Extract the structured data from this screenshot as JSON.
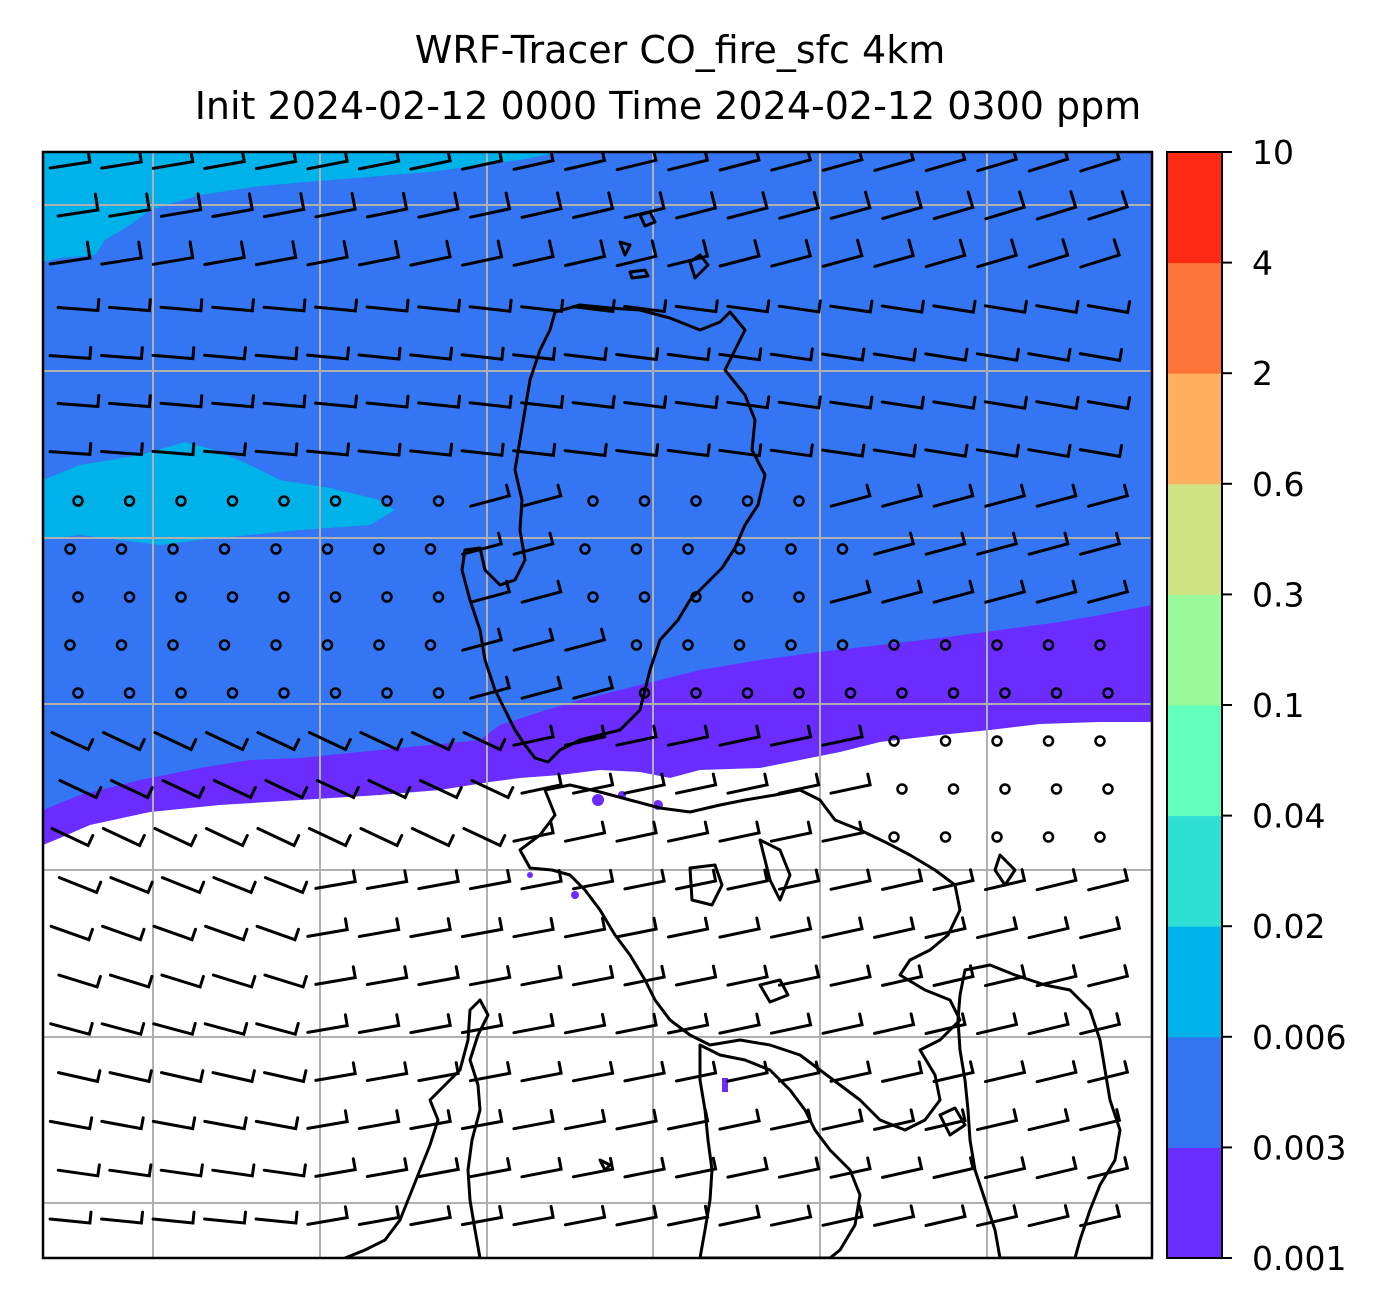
{
  "figure": {
    "title_line1": "WRF-Tracer CO_fire_sfc 4km",
    "title_line2": "Init 2024-02-12 0000 Time 2024-02-12 0300 ppm"
  },
  "colorbar": {
    "levels": [
      "0.001",
      "0.003",
      "0.006",
      "0.02",
      "0.04",
      "0.1",
      "0.3",
      "0.6",
      "2",
      "4",
      "10"
    ],
    "tick_labels": [
      "0.001",
      "0.003",
      "0.006",
      "0.02",
      "0.04",
      "0.1",
      "0.3",
      "0.6",
      "2",
      "4",
      "10"
    ],
    "colors": [
      "#6a2cff",
      "#3375f2",
      "#00b2ea",
      "#2ee0d3",
      "#63ffbd",
      "#98fa98",
      "#d1e382",
      "#ffb160",
      "#ff7539",
      "#ff2a14"
    ]
  },
  "map": {
    "field_colors": {
      "band_0006_002": "#00b2ea",
      "band_0003_0006": "#3375f2",
      "band_0001_0003": "#6a2cff",
      "below_0001": "#ffffff"
    },
    "gridline_color": "#b0b0b0",
    "coastline_color": "#000000",
    "wind_barb_color": "#000000"
  }
}
